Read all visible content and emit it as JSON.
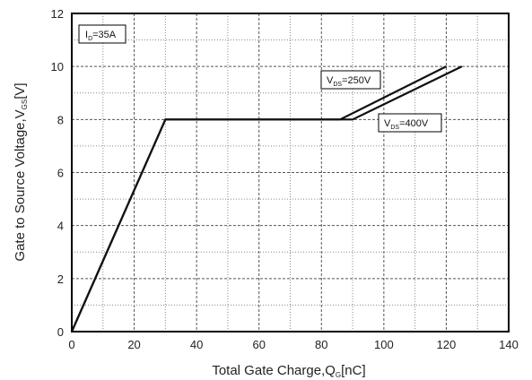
{
  "chart_data": {
    "type": "line",
    "xlabel": {
      "main": "Total Gate Charge,Q",
      "sub": "G",
      "unit": "[nC]"
    },
    "ylabel": {
      "main": "Gate to Source Voltage,V",
      "sub": "GS",
      "unit": "[V]"
    },
    "xlim": [
      0,
      140
    ],
    "ylim": [
      0,
      12
    ],
    "x_ticks": [
      0,
      20,
      40,
      60,
      80,
      100,
      120,
      140
    ],
    "y_ticks": [
      0,
      2,
      4,
      6,
      8,
      10,
      12
    ],
    "grid": {
      "major": true,
      "minor_dotted": true,
      "x_minor_step": 10,
      "y_minor_step": 1
    },
    "condition": {
      "main": "I",
      "sub": "D",
      "value": "=35A"
    },
    "series": [
      {
        "name": {
          "main": "V",
          "sub": "DS",
          "value": "=250V"
        },
        "x": [
          0,
          30,
          86,
          120
        ],
        "y": [
          0,
          8,
          8,
          10
        ]
      },
      {
        "name": {
          "main": "V",
          "sub": "DS",
          "value": "=400V"
        },
        "x": [
          0,
          30,
          90,
          125
        ],
        "y": [
          0,
          8,
          8,
          10
        ]
      }
    ],
    "line_color": "#111111"
  }
}
